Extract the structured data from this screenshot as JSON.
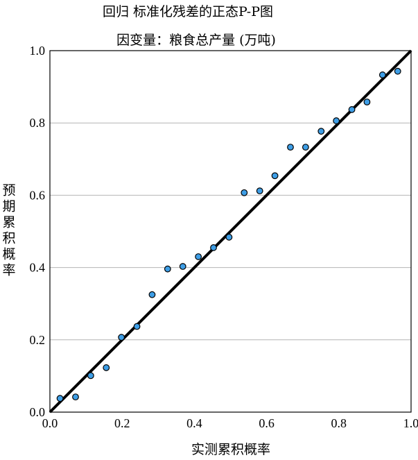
{
  "chart_data": {
    "type": "scatter",
    "title": "回归 标准化残差的正态P-P图",
    "subtitle": "因变量：粮食总产量 (万吨)",
    "xlabel": "实测累积概率",
    "ylabel": "预期累积概率",
    "xlim": [
      0.0,
      1.0
    ],
    "ylim": [
      0.0,
      1.0
    ],
    "xticks": [
      "0.0",
      "0.2",
      "0.4",
      "0.6",
      "0.8",
      "1.0"
    ],
    "yticks": [
      "0.0",
      "0.2",
      "0.4",
      "0.6",
      "0.8",
      "1.0"
    ],
    "grid": "horizontal",
    "reference_line": [
      [
        0.0,
        0.0
      ],
      [
        1.0,
        1.0
      ]
    ],
    "colors": {
      "point_fill": "#3e9ee6",
      "point_stroke": "#000000",
      "line": "#000000",
      "grid": "#b4b4b4"
    },
    "points": [
      {
        "x": 0.028,
        "y": 0.038
      },
      {
        "x": 0.071,
        "y": 0.042
      },
      {
        "x": 0.113,
        "y": 0.101
      },
      {
        "x": 0.156,
        "y": 0.123
      },
      {
        "x": 0.198,
        "y": 0.207
      },
      {
        "x": 0.241,
        "y": 0.237
      },
      {
        "x": 0.283,
        "y": 0.325
      },
      {
        "x": 0.326,
        "y": 0.396
      },
      {
        "x": 0.368,
        "y": 0.403
      },
      {
        "x": 0.411,
        "y": 0.43
      },
      {
        "x": 0.453,
        "y": 0.455
      },
      {
        "x": 0.496,
        "y": 0.484
      },
      {
        "x": 0.538,
        "y": 0.607
      },
      {
        "x": 0.581,
        "y": 0.612
      },
      {
        "x": 0.623,
        "y": 0.654
      },
      {
        "x": 0.666,
        "y": 0.733
      },
      {
        "x": 0.708,
        "y": 0.733
      },
      {
        "x": 0.751,
        "y": 0.777
      },
      {
        "x": 0.793,
        "y": 0.806
      },
      {
        "x": 0.836,
        "y": 0.837
      },
      {
        "x": 0.878,
        "y": 0.858
      },
      {
        "x": 0.921,
        "y": 0.933
      },
      {
        "x": 0.963,
        "y": 0.943
      }
    ]
  }
}
